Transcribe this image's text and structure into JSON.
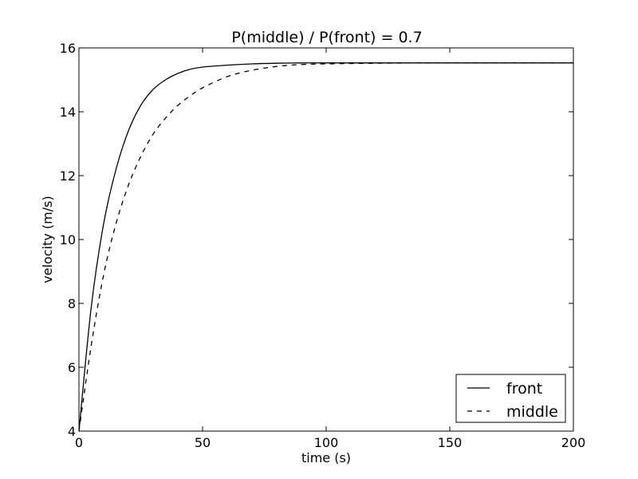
{
  "chart_data": {
    "type": "line",
    "title": "P(middle) / P(front) = 0.7",
    "xlabel": "time (s)",
    "ylabel": "velocity (m/s)",
    "xlim": [
      0,
      200
    ],
    "ylim": [
      4,
      16
    ],
    "xticks": [
      0,
      50,
      100,
      150,
      200
    ],
    "yticks": [
      4,
      6,
      8,
      10,
      12,
      14,
      16
    ],
    "grid": false,
    "legend_position": "lower-right",
    "series": [
      {
        "name": "front",
        "line_style": "solid",
        "color": "#000000",
        "x": [
          0,
          5,
          10,
          15,
          20,
          25,
          30,
          35,
          40,
          45,
          50,
          60,
          70,
          80,
          90,
          100,
          120,
          140,
          160,
          180,
          200
        ],
        "y": [
          4.0,
          7.9,
          10.5,
          12.2,
          13.4,
          14.2,
          14.7,
          15.0,
          15.2,
          15.33,
          15.4,
          15.46,
          15.5,
          15.52,
          15.53,
          15.53,
          15.53,
          15.53,
          15.53,
          15.53,
          15.53
        ]
      },
      {
        "name": "middle",
        "line_style": "dashed",
        "color": "#000000",
        "x": [
          0,
          5,
          10,
          15,
          20,
          25,
          30,
          35,
          40,
          45,
          50,
          60,
          70,
          80,
          90,
          100,
          120,
          140,
          160,
          180,
          200
        ],
        "y": [
          4.0,
          6.7,
          8.9,
          10.5,
          11.7,
          12.6,
          13.3,
          13.8,
          14.2,
          14.5,
          14.75,
          15.1,
          15.3,
          15.42,
          15.48,
          15.5,
          15.52,
          15.53,
          15.53,
          15.53,
          15.53
        ]
      }
    ]
  }
}
